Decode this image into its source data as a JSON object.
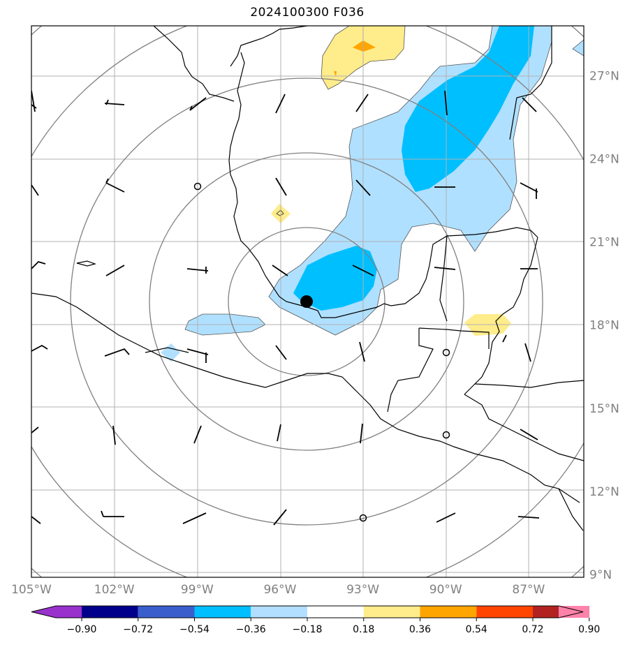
{
  "title": "2024100300 F036",
  "map": {
    "lat_labels": [
      "27°N",
      "24°N",
      "21°N",
      "18°N",
      "15°N",
      "12°N",
      "9°N"
    ],
    "lon_labels": [
      "105°W",
      "102°W",
      "99°W",
      "96°W",
      "93°W",
      "90°W",
      "87°W"
    ],
    "lat_values": [
      27,
      24,
      21,
      18,
      15,
      12,
      9
    ],
    "lon_values": [
      -105,
      -102,
      -99,
      -96,
      -93,
      -90,
      -87
    ],
    "extent": {
      "lon_min": -105,
      "lon_max": -85,
      "lat_min": 8.9,
      "lat_max": 28.8
    },
    "center_marker": {
      "lon": -95.0,
      "lat": 18.8
    },
    "range_rings_count": 5,
    "grid_color": "#b0b0b0",
    "ring_color": "#808080"
  },
  "colorbar": {
    "tick_labels": [
      "−0.90",
      "−0.72",
      "−0.54",
      "−0.36",
      "−0.18",
      "0.18",
      "0.36",
      "0.54",
      "0.72",
      "0.90"
    ],
    "colors": [
      "#9932cc",
      "#00008b",
      "#3a5fcd",
      "#00bfff",
      "#b2dfff",
      "#ffffff",
      "#ffec8b",
      "#ffa500",
      "#ff4500",
      "#b22222",
      "#ff82ab"
    ]
  },
  "fill_colors": {
    "light_blue": "#b0e0ff",
    "deep_sky": "#00bfff",
    "light_yellow": "#ffec8b",
    "orange": "#ffa500"
  }
}
